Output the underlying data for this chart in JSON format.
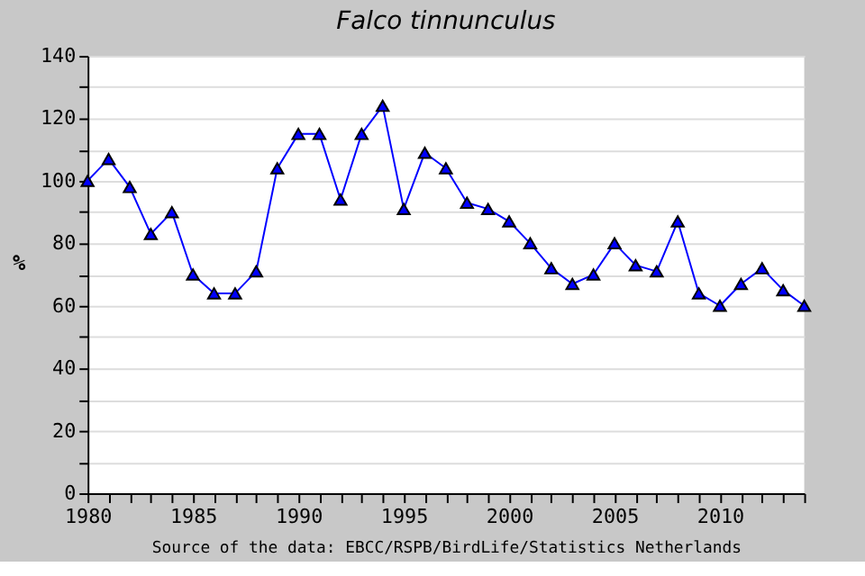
{
  "chart_data": {
    "type": "line",
    "title": "Falco tinnunculus",
    "ylabel": "%",
    "x": [
      1980,
      1981,
      1982,
      1983,
      1984,
      1985,
      1986,
      1987,
      1988,
      1989,
      1990,
      1991,
      1992,
      1993,
      1994,
      1995,
      1996,
      1997,
      1998,
      1999,
      2000,
      2001,
      2002,
      2003,
      2004,
      2005,
      2006,
      2007,
      2008,
      2009,
      2010,
      2011,
      2012,
      2013,
      2014
    ],
    "series": [
      {
        "color": "#0000ff",
        "values": [
          100,
          107,
          98,
          83,
          90,
          70,
          64,
          64,
          71,
          104,
          115,
          115,
          94,
          115,
          124,
          91,
          109,
          104,
          93,
          91,
          87,
          80,
          72,
          67,
          70,
          80,
          73,
          71,
          87,
          64,
          60,
          67,
          72,
          65,
          60
        ]
      }
    ],
    "xlim": [
      1980,
      2014
    ],
    "xticks": [
      1980,
      {
        "value": 1981,
        "label": null
      },
      {
        "value": 1982,
        "label": null
      },
      {
        "value": 1983,
        "label": null
      },
      {
        "value": 1984,
        "label": null
      },
      1985,
      {
        "value": 1986,
        "label": null
      },
      {
        "value": 1987,
        "label": null
      },
      {
        "value": 1988,
        "label": null
      },
      {
        "value": 1989,
        "label": null
      },
      1990,
      {
        "value": 1991,
        "label": null
      },
      {
        "value": 1992,
        "label": null
      },
      {
        "value": 1993,
        "label": null
      },
      {
        "value": 1994,
        "label": null
      },
      1995,
      {
        "value": 1996,
        "label": null
      },
      {
        "value": 1997,
        "label": null
      },
      {
        "value": 1998,
        "label": null
      },
      {
        "value": 1999,
        "label": null
      },
      2000,
      {
        "value": 2001,
        "label": null
      },
      {
        "value": 2002,
        "label": null
      },
      {
        "value": 2003,
        "label": null
      },
      {
        "value": 2004,
        "label": null
      },
      2005,
      {
        "value": 2006,
        "label": null
      },
      {
        "value": 2007,
        "label": null
      },
      {
        "value": 2008,
        "label": null
      },
      {
        "value": 2009,
        "label": null
      },
      2010,
      {
        "value": 2011,
        "label": null
      },
      {
        "value": 2012,
        "label": null
      },
      {
        "value": 2013,
        "label": null
      },
      {
        "value": 2014,
        "label": null
      }
    ],
    "ylim": [
      0,
      140
    ],
    "yticks": [
      0,
      {
        "value": 10,
        "label": null
      },
      20,
      {
        "value": 30,
        "label": null
      },
      40,
      {
        "value": 50,
        "label": null
      },
      60,
      {
        "value": 70,
        "label": null
      },
      80,
      {
        "value": 90,
        "label": null
      },
      100,
      {
        "value": 110,
        "label": null
      },
      120,
      {
        "value": 130,
        "label": null
      },
      140
    ],
    "grid": "y",
    "marker": "triangle",
    "line_style": "solid",
    "annotations": [
      "Source of the data: EBCC/RSPB/BirdLife/Statistics Netherlands"
    ]
  }
}
